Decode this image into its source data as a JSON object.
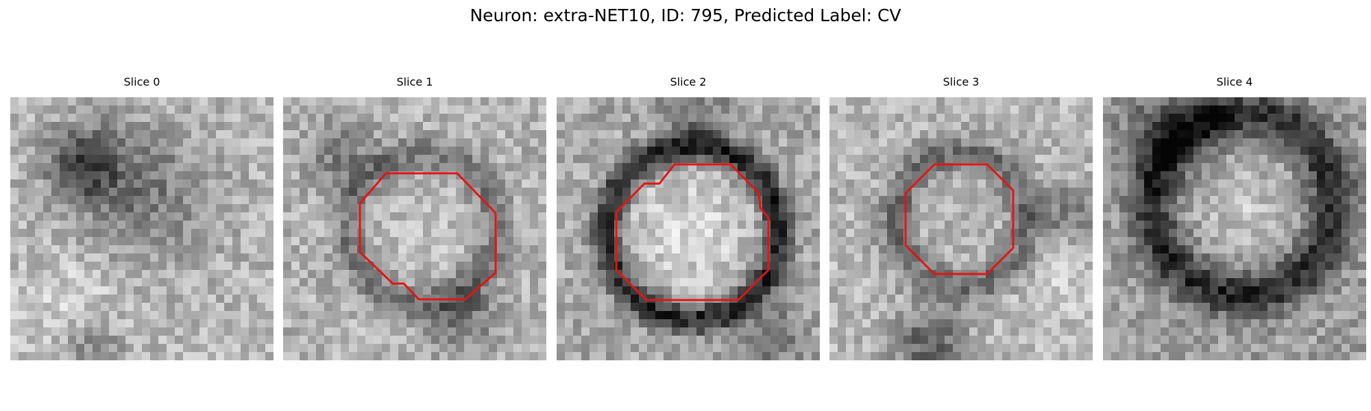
{
  "figure": {
    "title": "Neuron: extra-NET10, ID: 795, Predicted Label: CV",
    "contour_color": "#e41414",
    "colormap": "grayscale"
  },
  "panels": [
    {
      "title": "Slice 0",
      "has_contour": false
    },
    {
      "title": "Slice 1",
      "has_contour": true
    },
    {
      "title": "Slice 2",
      "has_contour": true
    },
    {
      "title": "Slice 3",
      "has_contour": true
    },
    {
      "title": "Slice 4",
      "has_contour": false
    }
  ]
}
